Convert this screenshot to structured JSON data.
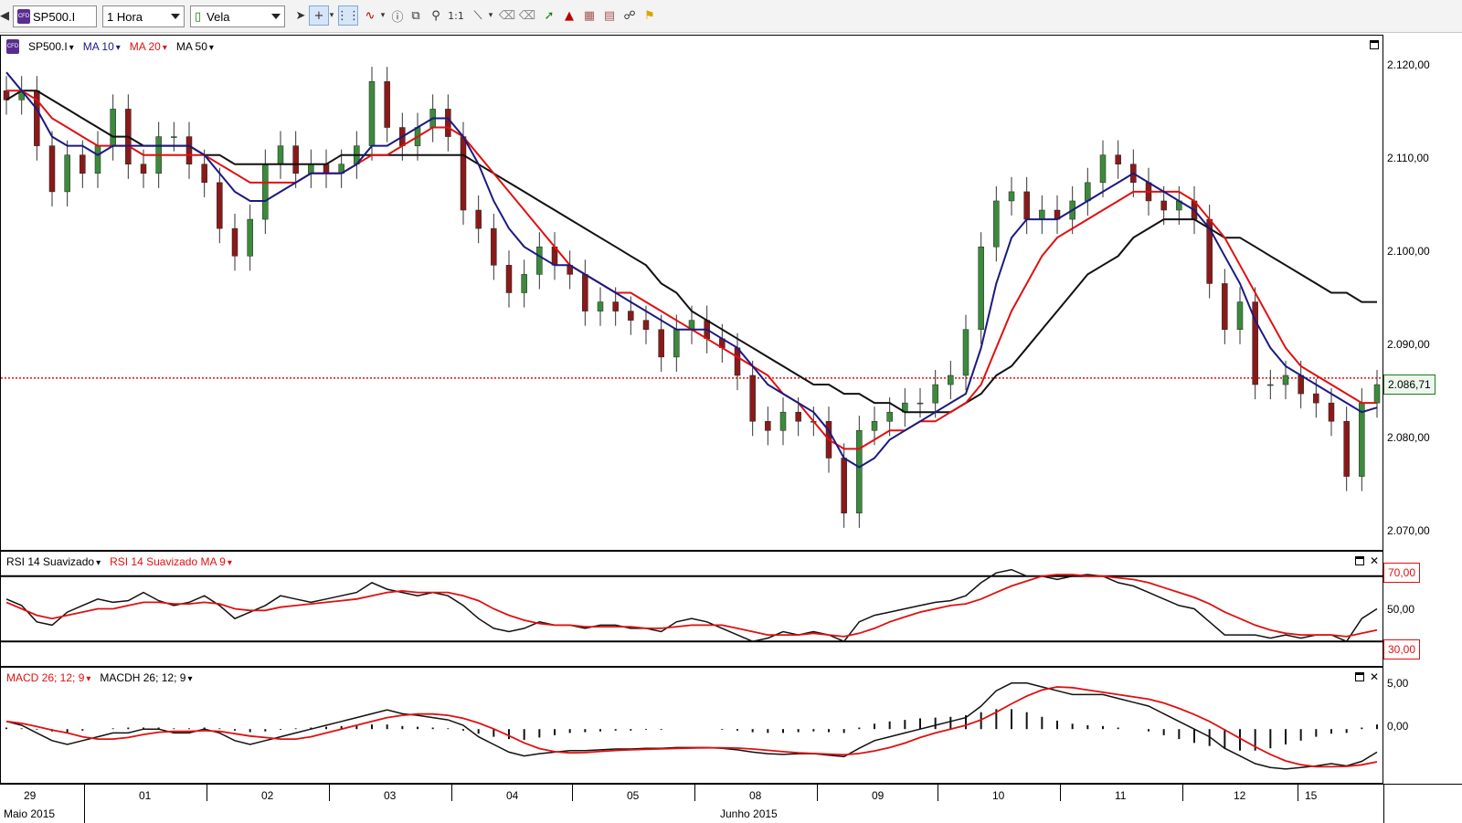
{
  "toolbar": {
    "symbol": "SP500.I",
    "timeframe": "1 Hora",
    "chart_type": "Vela",
    "zoom_label": "1:1",
    "tools": [
      "back-icon",
      "candle-type-icon",
      "pointer-icon",
      "crosshair-icon",
      "crosshair-dropdown-icon",
      "grid-icon",
      "indicators-icon",
      "info-icon",
      "zoom-fit-icon",
      "zoom-icon",
      "zoom-reset-icon",
      "line-tool-icon",
      "line-dropdown-icon",
      "eraser-icon",
      "eraser-all-icon",
      "trend-arrow-icon",
      "trade-icon",
      "template-icon",
      "paste-icon",
      "link-icon",
      "alert-bell-icon"
    ]
  },
  "price_panel": {
    "legend": [
      {
        "label": "SP500.I",
        "color": "#000000"
      },
      {
        "label": "MA 10",
        "color": "#1a1a80"
      },
      {
        "label": "MA 20",
        "color": "#e01010"
      },
      {
        "label": "MA 50",
        "color": "#000000"
      }
    ],
    "current_price_label": "2.086,71",
    "current_price_value": 2086.71,
    "axis_labels": [
      "2.120,00",
      "2.110,00",
      "2.100,00",
      "2.090,00",
      "2.080,00",
      "2.070,00"
    ]
  },
  "rsi_panel": {
    "legend": [
      "RSI 14 Suavizado",
      "RSI 14 Suavizado MA 9"
    ],
    "levels": [
      "70,00",
      "50,00",
      "30,00"
    ]
  },
  "macd_panel": {
    "legend": [
      "MACD 26; 12; 9",
      "MACDH 26; 12; 9"
    ],
    "levels": [
      "5,00",
      "0,00"
    ]
  },
  "date_axis": {
    "days": [
      "29",
      "01",
      "02",
      "03",
      "04",
      "05",
      "08",
      "09",
      "10",
      "11",
      "12",
      "15"
    ],
    "months": [
      "Maio 2015",
      "Junho 2015"
    ]
  },
  "chart_data": {
    "type": "candlestick",
    "title": "SP500.I 1 Hora",
    "ylim": [
      2068,
      2124
    ],
    "last_value": 2086.71,
    "series": [
      {
        "name": "SP500.I",
        "values": [
          2117,
          2118,
          2112,
          2107,
          2111,
          2109,
          2112,
          2116,
          2110,
          2109,
          2113,
          2113,
          2110,
          2108,
          2103,
          2100,
          2104,
          2110,
          2112,
          2109,
          2110,
          2109,
          2110,
          2112,
          2119,
          2114,
          2112,
          2114,
          2116,
          2113,
          2105,
          2103,
          2099,
          2096,
          2098,
          2101,
          2099,
          2098,
          2094,
          2095,
          2094,
          2093,
          2092,
          2089,
          2092,
          2093,
          2091,
          2090,
          2087,
          2082,
          2081,
          2083,
          2082,
          2082,
          2078,
          2072,
          2081,
          2082,
          2083,
          2084,
          2084,
          2086,
          2087,
          2092,
          2101,
          2106,
          2107,
          2104,
          2105,
          2104,
          2106,
          2108,
          2111,
          2110,
          2108,
          2106,
          2105,
          2106,
          2104,
          2097,
          2092,
          2095,
          2086,
          2086,
          2087,
          2085,
          2084,
          2082,
          2076,
          2084,
          2086
        ]
      },
      {
        "name": "MA 10",
        "values": [
          2120,
          2118,
          2116,
          2113,
          2112,
          2112,
          2111,
          2112,
          2112,
          2112,
          2112,
          2112,
          2112,
          2111,
          2109,
          2107,
          2106,
          2106,
          2107,
          2108,
          2109,
          2109,
          2109,
          2110,
          2112,
          2112,
          2113,
          2114,
          2115,
          2115,
          2113,
          2110,
          2106,
          2103,
          2101,
          2100,
          2099,
          2099,
          2098,
          2097,
          2096,
          2095,
          2094,
          2093,
          2092,
          2092,
          2092,
          2091,
          2090,
          2088,
          2086,
          2085,
          2084,
          2083,
          2081,
          2078,
          2077,
          2078,
          2080,
          2081,
          2082,
          2083,
          2084,
          2085,
          2090,
          2097,
          2102,
          2104,
          2104,
          2104,
          2105,
          2106,
          2107,
          2108,
          2109,
          2108,
          2107,
          2106,
          2105,
          2103,
          2100,
          2097,
          2093,
          2090,
          2088,
          2087,
          2086,
          2085,
          2084,
          2083,
          2083.5
        ]
      },
      {
        "name": "MA 20",
        "values": [
          2118,
          2118,
          2117,
          2115,
          2114,
          2113,
          2112,
          2112,
          2112,
          2111,
          2111,
          2111,
          2111,
          2111,
          2110,
          2109,
          2108,
          2108,
          2108,
          2108,
          2109,
          2109,
          2109,
          2110,
          2111,
          2111,
          2112,
          2113,
          2114,
          2114,
          2113,
          2111,
          2109,
          2107,
          2105,
          2103,
          2101,
          2099,
          2098,
          2097,
          2096,
          2096,
          2095,
          2094,
          2093,
          2092,
          2091,
          2090,
          2089,
          2088,
          2087,
          2085,
          2084,
          2082,
          2080,
          2079,
          2079,
          2080,
          2081,
          2081,
          2082,
          2082,
          2083,
          2084,
          2086,
          2090,
          2094,
          2097,
          2100,
          2102,
          2103,
          2104,
          2105,
          2106,
          2107,
          2107,
          2107,
          2107,
          2106,
          2104,
          2102,
          2099,
          2096,
          2093,
          2090,
          2088,
          2087,
          2086,
          2085,
          2084,
          2084
        ]
      },
      {
        "name": "MA 50",
        "values": [
          2117,
          2118,
          2118,
          2117,
          2116,
          2115,
          2114,
          2113,
          2113,
          2112,
          2112,
          2112,
          2112,
          2111,
          2111,
          2110,
          2110,
          2110,
          2110,
          2110,
          2110,
          2110,
          2111,
          2111,
          2111,
          2111,
          2111,
          2111,
          2111,
          2111,
          2111,
          2110,
          2109,
          2108,
          2107,
          2106,
          2105,
          2104,
          2103,
          2102,
          2101,
          2100,
          2099,
          2097,
          2096,
          2094,
          2093,
          2092,
          2091,
          2090,
          2089,
          2088,
          2087,
          2086,
          2086,
          2085,
          2085,
          2084,
          2084,
          2083,
          2083,
          2083,
          2083,
          2084,
          2085,
          2087,
          2088,
          2090,
          2092,
          2094,
          2096,
          2098,
          2099,
          2100,
          2102,
          2103,
          2104,
          2104,
          2104,
          2103,
          2102,
          2102,
          2101,
          2100,
          2099,
          2098,
          2097,
          2096,
          2096,
          2095,
          2095
        ]
      },
      {
        "name": "RSI 14 Suavizado",
        "values": [
          56,
          52,
          42,
          40,
          48,
          52,
          56,
          54,
          55,
          60,
          55,
          52,
          54,
          58,
          52,
          44,
          48,
          52,
          58,
          56,
          54,
          56,
          58,
          60,
          66,
          62,
          60,
          58,
          60,
          58,
          52,
          44,
          38,
          36,
          38,
          42,
          40,
          40,
          38,
          40,
          40,
          38,
          38,
          36,
          42,
          44,
          42,
          38,
          34,
          30,
          32,
          36,
          34,
          36,
          34,
          30,
          42,
          46,
          48,
          50,
          52,
          54,
          55,
          58,
          66,
          72,
          74,
          70,
          70,
          68,
          70,
          71,
          70,
          66,
          64,
          60,
          56,
          52,
          50,
          42,
          34,
          34,
          34,
          32,
          34,
          32,
          34,
          34,
          30,
          44,
          50
        ]
      },
      {
        "name": "RSI 14 Suavizado MA 9",
        "values": [
          54,
          50,
          46,
          44,
          46,
          48,
          50,
          50,
          52,
          54,
          54,
          53,
          53,
          54,
          53,
          50,
          49,
          49,
          51,
          52,
          53,
          54,
          55,
          56,
          58,
          60,
          61,
          60,
          60,
          60,
          58,
          55,
          50,
          46,
          43,
          41,
          40,
          40,
          39,
          39,
          39,
          39,
          38,
          38,
          39,
          40,
          40,
          40,
          38,
          36,
          34,
          34,
          34,
          35,
          34,
          33,
          35,
          38,
          42,
          45,
          48,
          50,
          52,
          53,
          56,
          60,
          64,
          67,
          70,
          71,
          71,
          70,
          70,
          69,
          68,
          66,
          63,
          60,
          57,
          53,
          48,
          44,
          40,
          37,
          35,
          34,
          34,
          34,
          33,
          35,
          37
        ]
      },
      {
        "name": "MACD 26; 12; 9",
        "values": [
          1,
          0.5,
          -0.5,
          -1.5,
          -2,
          -1.5,
          -1,
          -0.5,
          -0.5,
          0,
          0,
          -0.5,
          -0.5,
          0,
          -0.5,
          -1.5,
          -2,
          -1.5,
          -1,
          -0.5,
          0,
          0.5,
          1,
          1.5,
          2,
          2.5,
          2,
          1.8,
          1.5,
          1.2,
          0.5,
          -1,
          -2,
          -3,
          -3.5,
          -3.2,
          -3,
          -2.8,
          -2.8,
          -2.7,
          -2.6,
          -2.6,
          -2.5,
          -2.5,
          -2.4,
          -2.4,
          -2.4,
          -2.5,
          -2.7,
          -3,
          -3.2,
          -3.3,
          -3.2,
          -3.2,
          -3.4,
          -3.6,
          -2.5,
          -1.5,
          -1,
          -0.5,
          0,
          0.5,
          1,
          1.5,
          3,
          5,
          6,
          6,
          5.5,
          5,
          4.5,
          4.5,
          4.5,
          4,
          3.5,
          3,
          2,
          1,
          0,
          -1,
          -2.5,
          -3.5,
          -4.5,
          -5,
          -5.2,
          -5,
          -4.8,
          -4.5,
          -4.8,
          -4.2,
          -3
        ]
      },
      {
        "name": "MACDH 26; 12; 9",
        "values": [
          0.2,
          0.1,
          -0.1,
          -0.3,
          -0.4,
          -0.2,
          0,
          0.1,
          0.2,
          0.2,
          0.2,
          0.1,
          0.1,
          0.2,
          0.1,
          -0.2,
          -0.4,
          -0.3,
          -0.1,
          0.1,
          0.2,
          0.3,
          0.4,
          0.5,
          0.6,
          0.6,
          0.4,
          0.3,
          0.2,
          0.1,
          -0.2,
          -0.6,
          -1,
          -1.3,
          -1.4,
          -1.1,
          -0.8,
          -0.5,
          -0.4,
          -0.3,
          -0.2,
          -0.2,
          -0.1,
          -0.1,
          0,
          0,
          0,
          -0.1,
          -0.2,
          -0.4,
          -0.5,
          -0.5,
          -0.4,
          -0.3,
          -0.4,
          -0.5,
          0.2,
          0.7,
          1,
          1.2,
          1.4,
          1.5,
          1.6,
          1.8,
          2.2,
          2.6,
          2.6,
          2.2,
          1.6,
          1.1,
          0.7,
          0.5,
          0.4,
          0.2,
          0,
          -0.3,
          -0.8,
          -1.3,
          -1.8,
          -2.2,
          -2.6,
          -2.8,
          -2.8,
          -2.5,
          -2,
          -1.5,
          -1,
          -0.6,
          -0.5,
          0.2,
          0.6
        ]
      }
    ]
  }
}
